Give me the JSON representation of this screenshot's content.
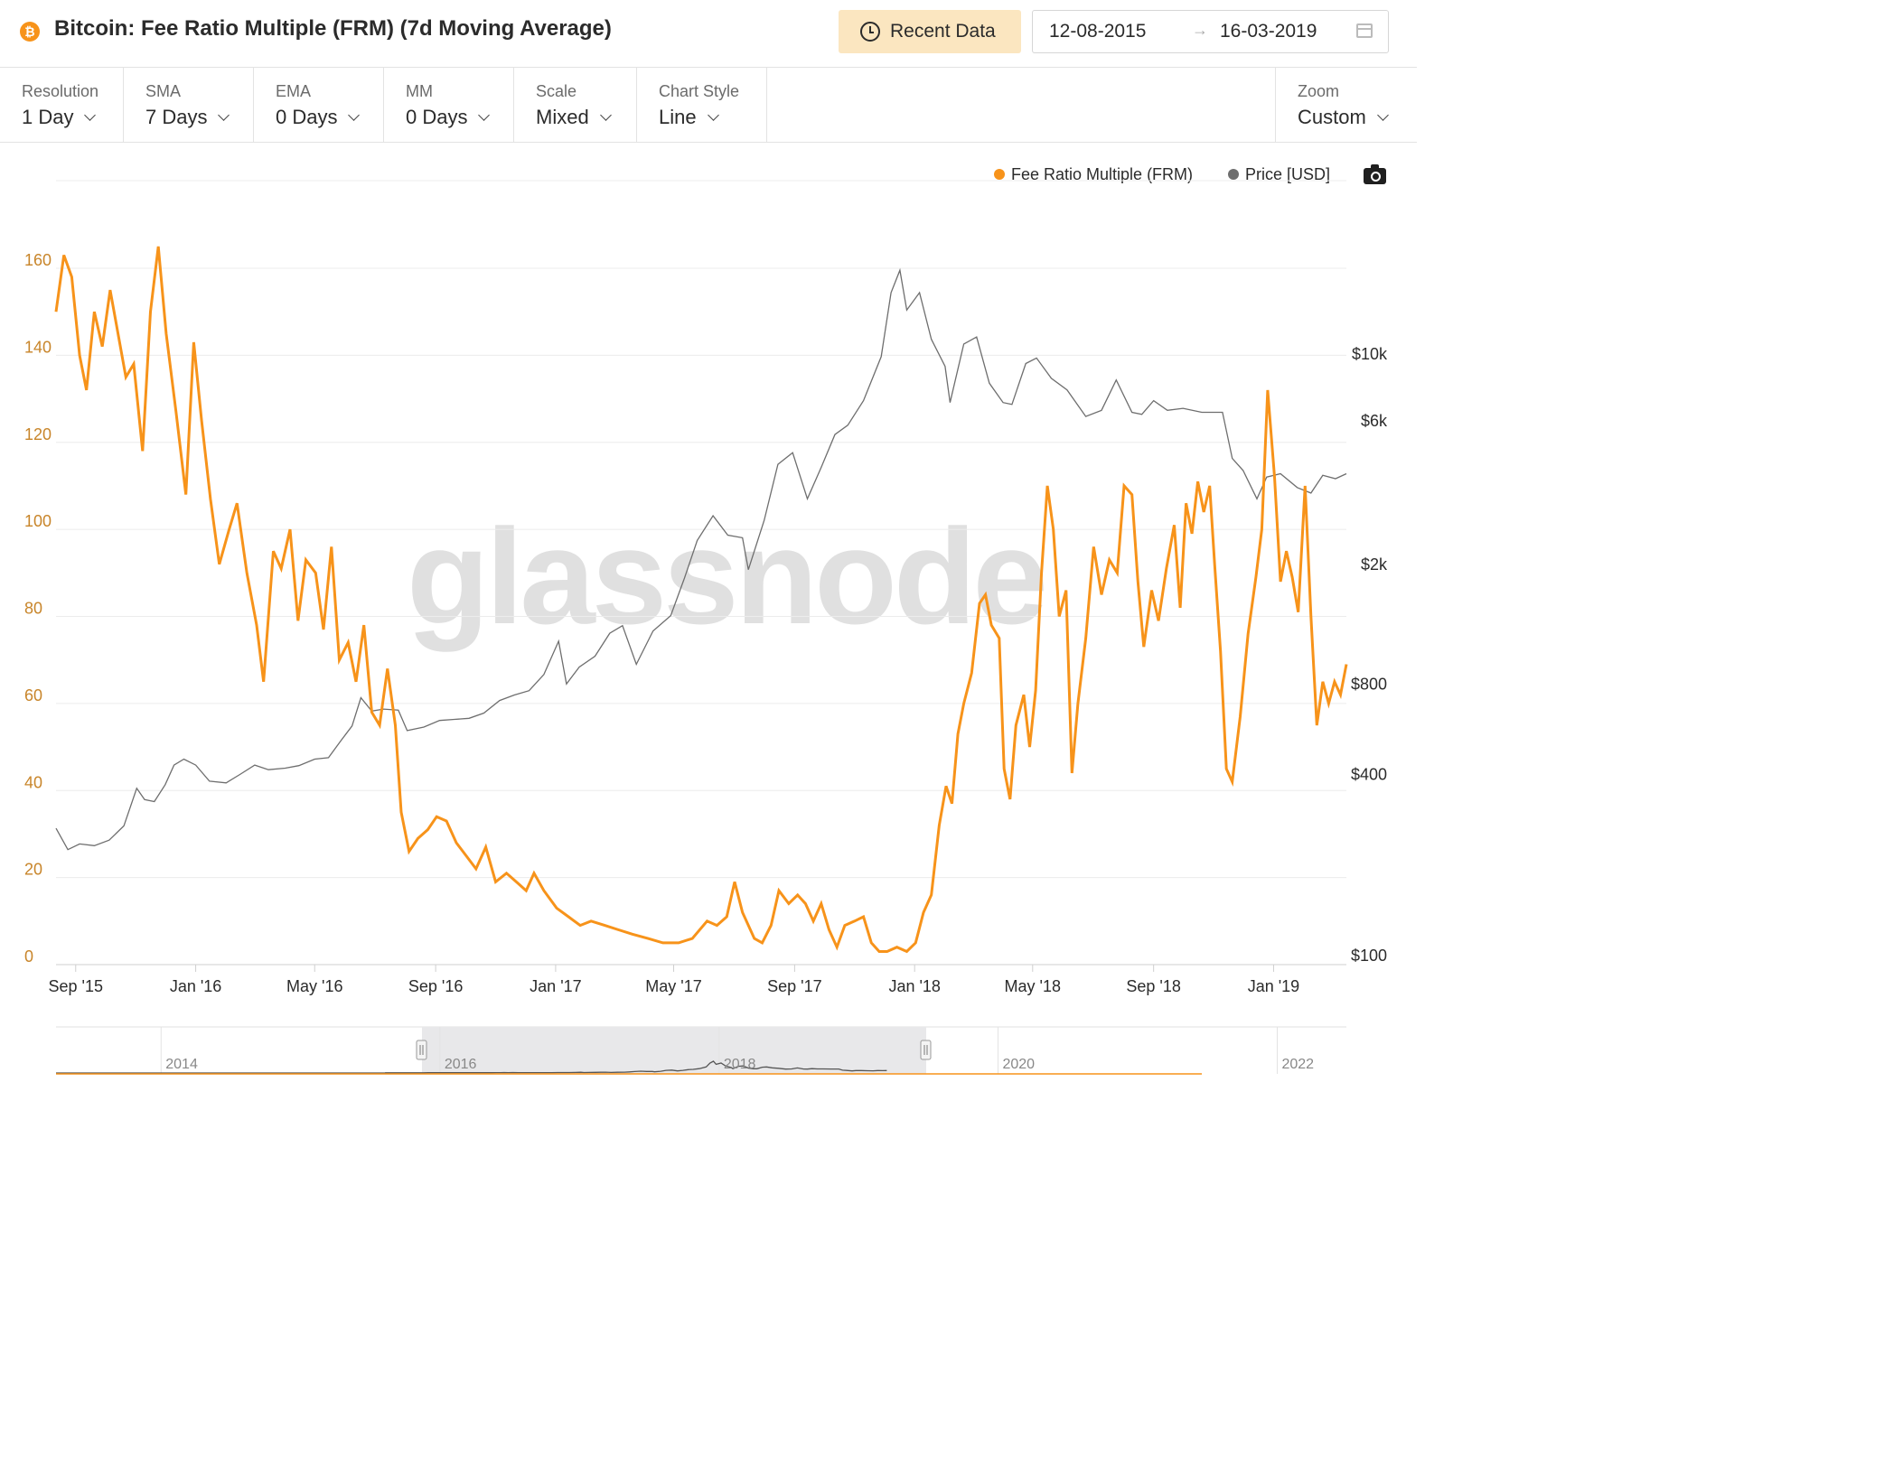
{
  "header": {
    "coin_icon": "bitcoin-icon",
    "title": "Bitcoin: Fee Ratio Multiple (FRM) (7d Moving Average)",
    "recent_data_label": "Recent Data",
    "date_from": "12-08-2015",
    "date_arrow": "→",
    "date_to": "16-03-2019"
  },
  "toolbar": {
    "resolution": {
      "label": "Resolution",
      "value": "1 Day"
    },
    "sma": {
      "label": "SMA",
      "value": "7 Days"
    },
    "ema": {
      "label": "EMA",
      "value": "0 Days"
    },
    "mm": {
      "label": "MM",
      "value": "0 Days"
    },
    "scale": {
      "label": "Scale",
      "value": "Mixed"
    },
    "chart_style": {
      "label": "Chart Style",
      "value": "Line"
    },
    "zoom": {
      "label": "Zoom",
      "value": "Custom"
    }
  },
  "watermark": "glassnode",
  "colors": {
    "frm": "#f7931a",
    "price": "#6e6e6e",
    "grid": "#ececec"
  },
  "chart_data": {
    "type": "line",
    "title": "Bitcoin: Fee Ratio Multiple (FRM) (7d Moving Average)",
    "legend_position": "top-right",
    "grid": true,
    "x_range": [
      "2015-08-12",
      "2019-03-16"
    ],
    "x_ticks": [
      "Sep '15",
      "Jan '16",
      "May '16",
      "Sep '16",
      "Jan '17",
      "May '17",
      "Sep '17",
      "Jan '18",
      "May '18",
      "Sep '18",
      "Jan '19"
    ],
    "y_left": {
      "ticks": [
        "0",
        "20",
        "40",
        "60",
        "80",
        "100",
        "120",
        "140",
        "160"
      ],
      "range": [
        0,
        160
      ]
    },
    "y_right": {
      "scale": "log",
      "ticks": [
        "$100",
        "$400",
        "$800",
        "$2k",
        "$6k",
        "$10k"
      ],
      "tick_values": [
        100,
        400,
        800,
        2000,
        6000,
        10000
      ]
    },
    "series": [
      {
        "name": "Fee Ratio Multiple (FRM)",
        "axis": "left",
        "points": [
          [
            "2015-08-12",
            150
          ],
          [
            "2015-08-20",
            163
          ],
          [
            "2015-08-28",
            158
          ],
          [
            "2015-09-05",
            140
          ],
          [
            "2015-09-12",
            132
          ],
          [
            "2015-09-20",
            150
          ],
          [
            "2015-09-28",
            142
          ],
          [
            "2015-10-06",
            155
          ],
          [
            "2015-10-14",
            145
          ],
          [
            "2015-10-22",
            135
          ],
          [
            "2015-10-30",
            138
          ],
          [
            "2015-11-08",
            118
          ],
          [
            "2015-11-16",
            150
          ],
          [
            "2015-11-24",
            165
          ],
          [
            "2015-12-02",
            145
          ],
          [
            "2015-12-12",
            127
          ],
          [
            "2015-12-22",
            108
          ],
          [
            "2015-12-30",
            143
          ],
          [
            "2016-01-07",
            125
          ],
          [
            "2016-01-16",
            107
          ],
          [
            "2016-01-25",
            92
          ],
          [
            "2016-02-04",
            100
          ],
          [
            "2016-02-12",
            106
          ],
          [
            "2016-02-22",
            90
          ],
          [
            "2016-03-03",
            78
          ],
          [
            "2016-03-10",
            65
          ],
          [
            "2016-03-20",
            95
          ],
          [
            "2016-03-28",
            91
          ],
          [
            "2016-04-06",
            100
          ],
          [
            "2016-04-14",
            79
          ],
          [
            "2016-04-22",
            93
          ],
          [
            "2016-05-02",
            90
          ],
          [
            "2016-05-10",
            77
          ],
          [
            "2016-05-18",
            96
          ],
          [
            "2016-05-26",
            70
          ],
          [
            "2016-06-04",
            74
          ],
          [
            "2016-06-12",
            65
          ],
          [
            "2016-06-20",
            78
          ],
          [
            "2016-06-28",
            58
          ],
          [
            "2016-07-06",
            55
          ],
          [
            "2016-07-14",
            68
          ],
          [
            "2016-07-22",
            55
          ],
          [
            "2016-07-28",
            35
          ],
          [
            "2016-08-05",
            26
          ],
          [
            "2016-08-14",
            29
          ],
          [
            "2016-08-24",
            31
          ],
          [
            "2016-09-02",
            34
          ],
          [
            "2016-09-12",
            33
          ],
          [
            "2016-09-22",
            28
          ],
          [
            "2016-10-02",
            25
          ],
          [
            "2016-10-12",
            22
          ],
          [
            "2016-10-22",
            27
          ],
          [
            "2016-11-01",
            19
          ],
          [
            "2016-11-12",
            21
          ],
          [
            "2016-11-22",
            19
          ],
          [
            "2016-12-02",
            17
          ],
          [
            "2016-12-10",
            21
          ],
          [
            "2016-12-20",
            17
          ],
          [
            "2017-01-02",
            13
          ],
          [
            "2017-01-14",
            11
          ],
          [
            "2017-01-26",
            9
          ],
          [
            "2017-02-06",
            10
          ],
          [
            "2017-02-20",
            9
          ],
          [
            "2017-03-06",
            8
          ],
          [
            "2017-03-20",
            7
          ],
          [
            "2017-04-05",
            6
          ],
          [
            "2017-04-20",
            5
          ],
          [
            "2017-05-06",
            5
          ],
          [
            "2017-05-20",
            6
          ],
          [
            "2017-06-04",
            10
          ],
          [
            "2017-06-14",
            9
          ],
          [
            "2017-06-24",
            11
          ],
          [
            "2017-07-02",
            19
          ],
          [
            "2017-07-10",
            12
          ],
          [
            "2017-07-22",
            6
          ],
          [
            "2017-07-30",
            5
          ],
          [
            "2017-08-08",
            9
          ],
          [
            "2017-08-16",
            17
          ],
          [
            "2017-08-26",
            14
          ],
          [
            "2017-09-04",
            16
          ],
          [
            "2017-09-12",
            14
          ],
          [
            "2017-09-20",
            10
          ],
          [
            "2017-09-28",
            14
          ],
          [
            "2017-10-06",
            8
          ],
          [
            "2017-10-14",
            4
          ],
          [
            "2017-10-22",
            9
          ],
          [
            "2017-11-01",
            10
          ],
          [
            "2017-11-10",
            11
          ],
          [
            "2017-11-18",
            5
          ],
          [
            "2017-11-26",
            3
          ],
          [
            "2017-12-04",
            3
          ],
          [
            "2017-12-14",
            4
          ],
          [
            "2017-12-24",
            3
          ],
          [
            "2018-01-02",
            5
          ],
          [
            "2018-01-10",
            12
          ],
          [
            "2018-01-18",
            16
          ],
          [
            "2018-01-26",
            32
          ],
          [
            "2018-02-02",
            41
          ],
          [
            "2018-02-08",
            37
          ],
          [
            "2018-02-14",
            53
          ],
          [
            "2018-02-20",
            60
          ],
          [
            "2018-02-28",
            67
          ],
          [
            "2018-03-08",
            83
          ],
          [
            "2018-03-14",
            85
          ],
          [
            "2018-03-20",
            78
          ],
          [
            "2018-03-28",
            75
          ],
          [
            "2018-04-02",
            45
          ],
          [
            "2018-04-08",
            38
          ],
          [
            "2018-04-14",
            55
          ],
          [
            "2018-04-22",
            62
          ],
          [
            "2018-04-28",
            50
          ],
          [
            "2018-05-04",
            63
          ],
          [
            "2018-05-10",
            90
          ],
          [
            "2018-05-16",
            110
          ],
          [
            "2018-05-22",
            100
          ],
          [
            "2018-05-28",
            80
          ],
          [
            "2018-06-04",
            86
          ],
          [
            "2018-06-10",
            44
          ],
          [
            "2018-06-16",
            60
          ],
          [
            "2018-06-24",
            75
          ],
          [
            "2018-07-02",
            96
          ],
          [
            "2018-07-10",
            85
          ],
          [
            "2018-07-18",
            93
          ],
          [
            "2018-07-26",
            90
          ],
          [
            "2018-08-02",
            110
          ],
          [
            "2018-08-10",
            108
          ],
          [
            "2018-08-16",
            88
          ],
          [
            "2018-08-22",
            73
          ],
          [
            "2018-08-30",
            86
          ],
          [
            "2018-09-06",
            79
          ],
          [
            "2018-09-14",
            91
          ],
          [
            "2018-09-22",
            101
          ],
          [
            "2018-09-28",
            82
          ],
          [
            "2018-10-04",
            106
          ],
          [
            "2018-10-10",
            99
          ],
          [
            "2018-10-16",
            111
          ],
          [
            "2018-10-22",
            104
          ],
          [
            "2018-10-28",
            110
          ],
          [
            "2018-11-02",
            92
          ],
          [
            "2018-11-08",
            72
          ],
          [
            "2018-11-14",
            45
          ],
          [
            "2018-11-20",
            42
          ],
          [
            "2018-11-28",
            57
          ],
          [
            "2018-12-06",
            76
          ],
          [
            "2018-12-14",
            89
          ],
          [
            "2018-12-20",
            100
          ],
          [
            "2018-12-26",
            132
          ],
          [
            "2019-01-02",
            112
          ],
          [
            "2019-01-08",
            88
          ],
          [
            "2019-01-14",
            95
          ],
          [
            "2019-01-20",
            89
          ],
          [
            "2019-01-26",
            81
          ],
          [
            "2019-02-02",
            110
          ],
          [
            "2019-02-08",
            80
          ],
          [
            "2019-02-14",
            55
          ],
          [
            "2019-02-20",
            65
          ],
          [
            "2019-02-26",
            60
          ],
          [
            "2019-03-04",
            65
          ],
          [
            "2019-03-10",
            62
          ],
          [
            "2019-03-16",
            69
          ]
        ]
      },
      {
        "name": "Price [USD]",
        "axis": "right",
        "points": [
          [
            "2015-08-12",
            265
          ],
          [
            "2015-08-24",
            225
          ],
          [
            "2015-09-05",
            235
          ],
          [
            "2015-09-20",
            232
          ],
          [
            "2015-10-05",
            242
          ],
          [
            "2015-10-20",
            270
          ],
          [
            "2015-11-02",
            360
          ],
          [
            "2015-11-10",
            330
          ],
          [
            "2015-11-20",
            325
          ],
          [
            "2015-12-01",
            370
          ],
          [
            "2015-12-10",
            430
          ],
          [
            "2015-12-20",
            450
          ],
          [
            "2016-01-01",
            430
          ],
          [
            "2016-01-15",
            380
          ],
          [
            "2016-02-01",
            375
          ],
          [
            "2016-02-15",
            400
          ],
          [
            "2016-03-01",
            430
          ],
          [
            "2016-03-15",
            415
          ],
          [
            "2016-04-01",
            420
          ],
          [
            "2016-04-15",
            428
          ],
          [
            "2016-05-01",
            450
          ],
          [
            "2016-05-15",
            455
          ],
          [
            "2016-05-28",
            520
          ],
          [
            "2016-06-08",
            580
          ],
          [
            "2016-06-17",
            720
          ],
          [
            "2016-06-28",
            650
          ],
          [
            "2016-07-10",
            660
          ],
          [
            "2016-07-25",
            655
          ],
          [
            "2016-08-03",
            560
          ],
          [
            "2016-08-20",
            575
          ],
          [
            "2016-09-05",
            605
          ],
          [
            "2016-09-20",
            610
          ],
          [
            "2016-10-05",
            615
          ],
          [
            "2016-10-20",
            640
          ],
          [
            "2016-11-05",
            705
          ],
          [
            "2016-11-20",
            735
          ],
          [
            "2016-12-05",
            760
          ],
          [
            "2016-12-20",
            860
          ],
          [
            "2017-01-04",
            1110
          ],
          [
            "2017-01-12",
            800
          ],
          [
            "2017-01-25",
            910
          ],
          [
            "2017-02-10",
            990
          ],
          [
            "2017-02-25",
            1180
          ],
          [
            "2017-03-10",
            1250
          ],
          [
            "2017-03-24",
            930
          ],
          [
            "2017-04-10",
            1200
          ],
          [
            "2017-04-28",
            1350
          ],
          [
            "2017-05-12",
            1800
          ],
          [
            "2017-05-25",
            2400
          ],
          [
            "2017-06-10",
            2900
          ],
          [
            "2017-06-25",
            2500
          ],
          [
            "2017-07-10",
            2450
          ],
          [
            "2017-07-16",
            1920
          ],
          [
            "2017-08-01",
            2800
          ],
          [
            "2017-08-15",
            4300
          ],
          [
            "2017-08-30",
            4700
          ],
          [
            "2017-09-14",
            3300
          ],
          [
            "2017-09-28",
            4200
          ],
          [
            "2017-10-12",
            5400
          ],
          [
            "2017-10-25",
            5800
          ],
          [
            "2017-11-10",
            7000
          ],
          [
            "2017-11-28",
            9800
          ],
          [
            "2017-12-08",
            16000
          ],
          [
            "2017-12-17",
            19000
          ],
          [
            "2017-12-24",
            14000
          ],
          [
            "2018-01-06",
            16000
          ],
          [
            "2018-01-18",
            11200
          ],
          [
            "2018-02-01",
            9100
          ],
          [
            "2018-02-06",
            6900
          ],
          [
            "2018-02-20",
            10800
          ],
          [
            "2018-03-05",
            11400
          ],
          [
            "2018-03-18",
            8000
          ],
          [
            "2018-04-01",
            6900
          ],
          [
            "2018-04-10",
            6800
          ],
          [
            "2018-04-24",
            9300
          ],
          [
            "2018-05-05",
            9700
          ],
          [
            "2018-05-20",
            8300
          ],
          [
            "2018-06-05",
            7600
          ],
          [
            "2018-06-24",
            6200
          ],
          [
            "2018-07-10",
            6500
          ],
          [
            "2018-07-25",
            8200
          ],
          [
            "2018-08-10",
            6400
          ],
          [
            "2018-08-20",
            6300
          ],
          [
            "2018-09-01",
            7000
          ],
          [
            "2018-09-15",
            6500
          ],
          [
            "2018-10-01",
            6600
          ],
          [
            "2018-10-20",
            6400
          ],
          [
            "2018-11-10",
            6400
          ],
          [
            "2018-11-20",
            4500
          ],
          [
            "2018-12-01",
            4100
          ],
          [
            "2018-12-15",
            3300
          ],
          [
            "2018-12-25",
            3900
          ],
          [
            "2019-01-08",
            4000
          ],
          [
            "2019-01-25",
            3600
          ],
          [
            "2019-02-08",
            3450
          ],
          [
            "2019-02-20",
            3950
          ],
          [
            "2019-03-05",
            3850
          ],
          [
            "2019-03-16",
            4000
          ]
        ]
      }
    ]
  },
  "navigator": {
    "labels": [
      "2014",
      "2016",
      "2018",
      "2020",
      "2022"
    ]
  }
}
